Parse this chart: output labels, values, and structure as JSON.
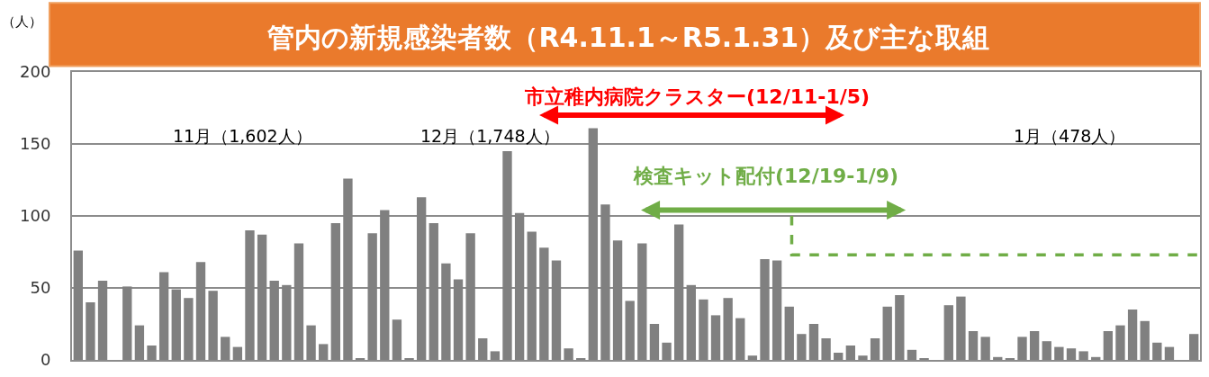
{
  "chart_data": {
    "type": "bar",
    "title": "管内の新規感染者数（R4.11.1～R5.1.31）及び主な取組",
    "ylabel": "（人）",
    "categories": [
      null,
      null,
      null,
      null,
      null,
      null,
      null,
      null,
      null,
      null,
      null,
      null,
      null,
      null,
      null,
      null,
      null,
      null,
      null,
      null,
      null,
      null,
      null,
      null,
      null,
      null,
      null,
      null,
      null,
      null,
      null,
      null,
      null,
      null,
      null,
      null,
      null,
      null,
      null,
      null,
      null,
      null,
      null,
      null,
      null,
      null,
      null,
      null,
      null,
      null,
      null,
      null,
      null,
      null,
      null,
      null,
      null,
      null,
      null,
      null,
      null,
      null,
      null,
      null,
      null,
      null,
      null,
      null,
      null,
      null,
      null,
      null,
      null,
      null,
      null,
      null,
      null,
      null,
      null,
      null,
      null,
      null,
      null,
      null,
      null,
      null,
      null,
      null,
      null,
      null,
      null,
      null
    ],
    "series": [
      {
        "color": "#808080",
        "values": [
          76,
          40,
          55,
          0,
          51,
          24,
          10,
          61,
          49,
          43,
          68,
          48,
          16,
          9,
          90,
          87,
          55,
          52,
          81,
          24,
          11,
          95,
          126,
          1,
          88,
          104,
          28,
          1,
          113,
          95,
          67,
          56,
          88,
          15,
          6,
          145,
          102,
          89,
          78,
          69,
          8,
          1,
          161,
          108,
          83,
          41,
          81,
          25,
          12,
          94,
          52,
          42,
          31,
          43,
          29,
          3,
          70,
          69,
          37,
          18,
          25,
          15,
          5,
          10,
          3,
          15,
          37,
          45,
          7,
          1,
          0,
          38,
          44,
          20,
          16,
          2,
          1,
          16,
          20,
          13,
          9,
          8,
          6,
          2,
          20,
          24,
          35,
          27,
          12,
          9,
          0,
          18
        ]
      }
    ],
    "annotations": [
      "11月（1,602人）",
      "12月（1,748人）",
      "1月（478人）",
      "市立稚内病院クラスター(12/11-1/5)",
      "検査キット配付(12/19-1/9)"
    ],
    "ylim": [
      0,
      200
    ],
    "yticks": [
      0,
      50,
      100,
      150,
      200
    ],
    "grid": "y",
    "tick_labels": "y"
  }
}
